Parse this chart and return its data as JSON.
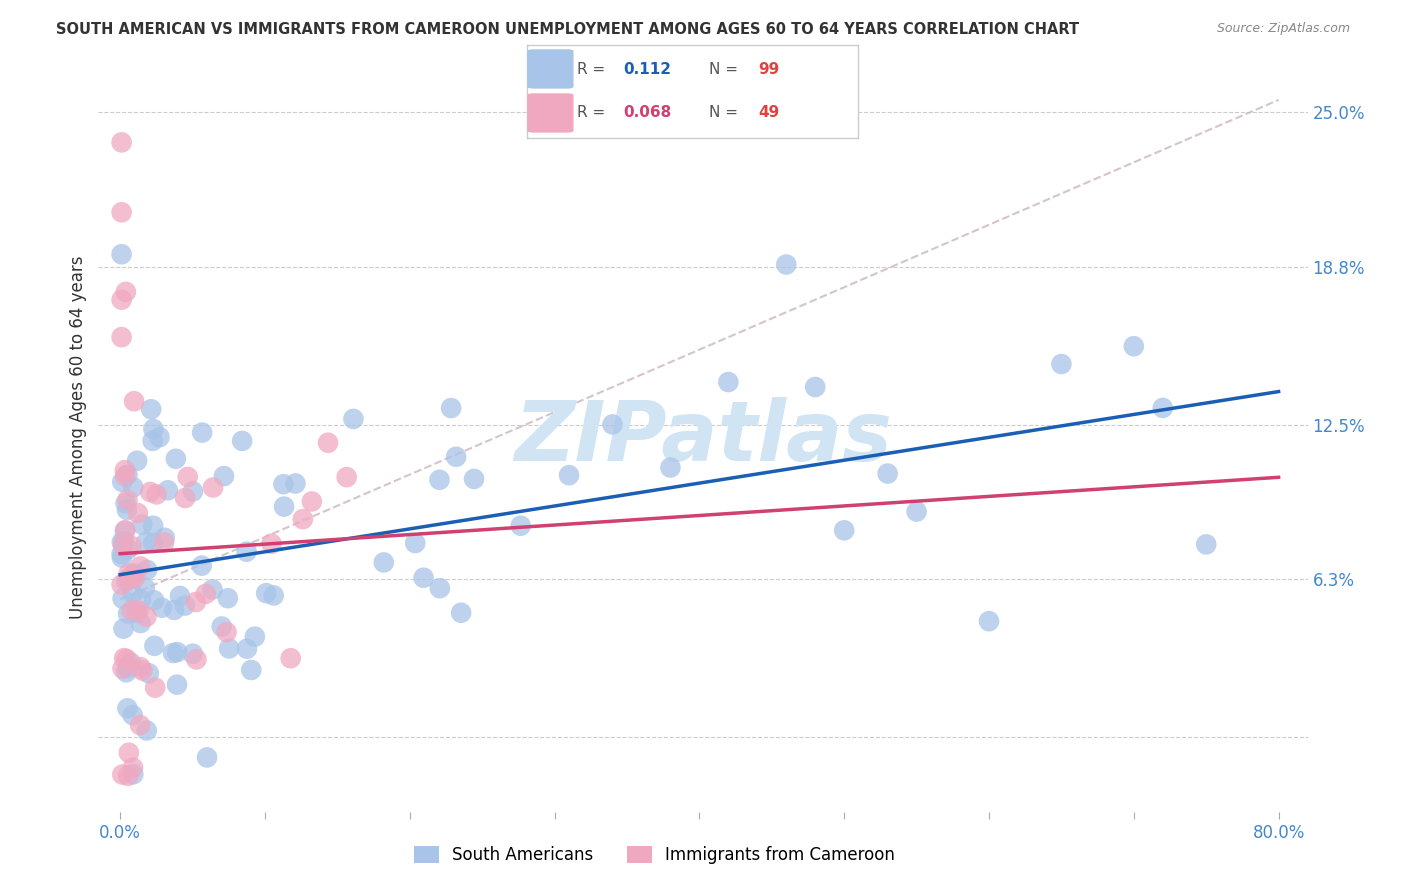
{
  "title": "SOUTH AMERICAN VS IMMIGRANTS FROM CAMEROON UNEMPLOYMENT AMONG AGES 60 TO 64 YEARS CORRELATION CHART",
  "source": "Source: ZipAtlas.com",
  "ylabel": "Unemployment Among Ages 60 to 64 years",
  "xlim_min": -0.015,
  "xlim_max": 0.82,
  "ylim_min": -0.03,
  "ylim_max": 0.27,
  "ytick_values": [
    0.0,
    0.063,
    0.125,
    0.188,
    0.25
  ],
  "xtick_values": [
    0.0,
    0.1,
    0.2,
    0.3,
    0.4,
    0.5,
    0.6,
    0.7,
    0.8
  ],
  "xtick_labels": [
    "0.0%",
    "",
    "",
    "",
    "",
    "",
    "",
    "",
    "80.0%"
  ],
  "right_ytick_values": [
    0.25,
    0.188,
    0.125,
    0.063
  ],
  "right_ytick_labels": [
    "25.0%",
    "18.8%",
    "12.5%",
    "6.3%"
  ],
  "legend_blue_r": "0.112",
  "legend_blue_n": "99",
  "legend_pink_r": "0.068",
  "legend_pink_n": "49",
  "blue_scatter_color": "#a8c4e8",
  "pink_scatter_color": "#f0a8c0",
  "blue_line_color": "#1a5fb4",
  "pink_line_color": "#d04070",
  "dash_line_color": "#c8b0bc",
  "grid_color": "#cccccc",
  "text_color": "#333333",
  "axis_label_color": "#4488cc",
  "watermark": "ZIPatlas",
  "watermark_color": "#d0e4f4",
  "blue_legend_label": "South Americans",
  "pink_legend_label": "Immigrants from Cameroon",
  "legend_r_color": "#555555",
  "legend_n_color": "#e04040"
}
